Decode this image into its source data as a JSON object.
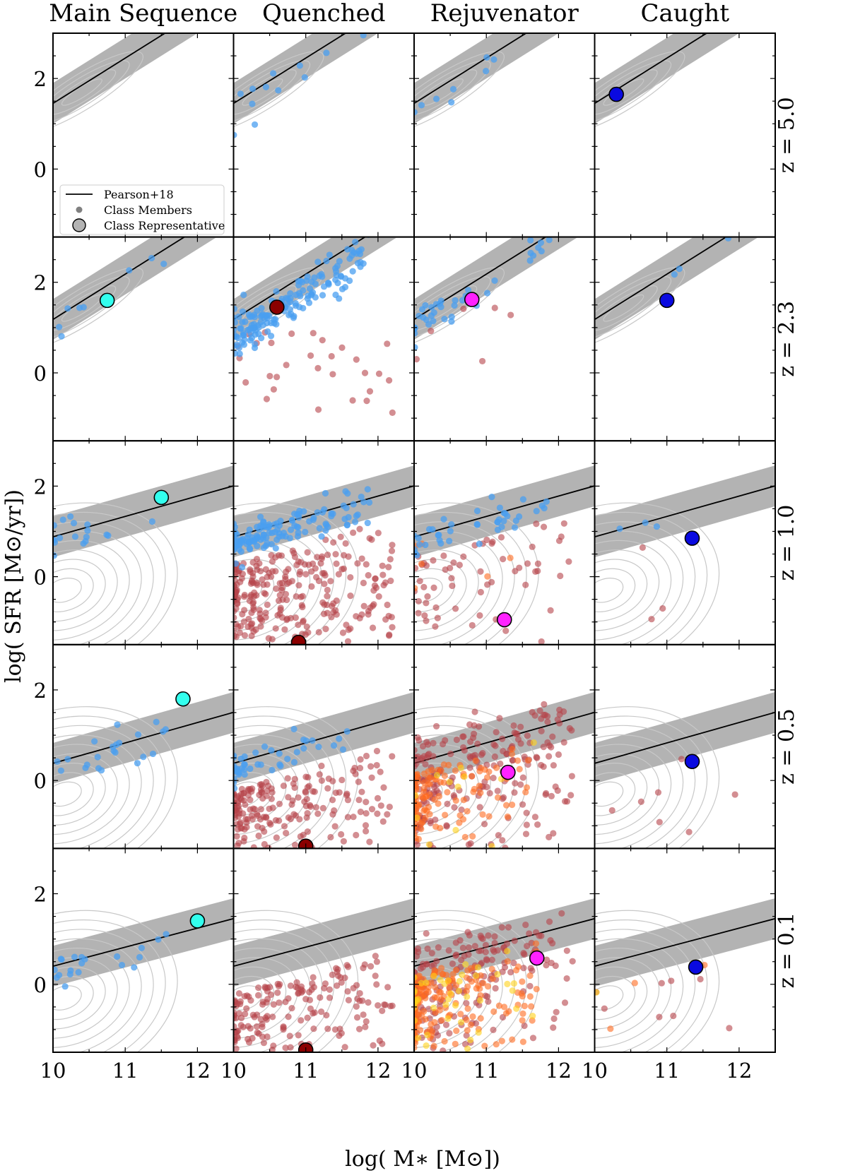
{
  "chart_data": {
    "type": "scatter",
    "columns": [
      "Main Sequence",
      "Quenched",
      "Rejuvenator",
      "Caught"
    ],
    "rows": [
      {
        "label": "z = 5.0",
        "z": 5.0,
        "ms_offset": 1.45
      },
      {
        "label": "z = 2.3",
        "z": 2.3,
        "ms_offset": 1.18
      },
      {
        "label": "z = 1.0",
        "z": 1.0,
        "ms_offset": 0.88
      },
      {
        "label": "z = 0.5",
        "z": 0.5,
        "ms_offset": 0.38
      },
      {
        "label": "z = 0.1",
        "z": 0.1,
        "ms_offset": 0.4
      }
    ],
    "ms_slopes": [
      1.0,
      1.0,
      0.45,
      0.45,
      0.42
    ],
    "ms_band_halfwidth": 0.45,
    "xlabel": "log( M∗ [M⊙])",
    "ylabel": "log( SFR [M⊙/yr])",
    "xlim": [
      10,
      12.5
    ],
    "ylim": [
      -1.5,
      3.0
    ],
    "xticks": [
      10,
      11,
      12
    ],
    "yticks": [
      0,
      2
    ],
    "legend": {
      "position": "lower-left",
      "panel": "Main Sequence, z = 5.0",
      "items": [
        "Pearson+18",
        "Class Members",
        "Class Representative"
      ]
    },
    "representatives": [
      {
        "column": "Caught",
        "row": "z = 5.0",
        "x": 10.3,
        "y": 1.65,
        "color": "#0a0ae0"
      },
      {
        "column": "Main Sequence",
        "row": "z = 2.3",
        "x": 10.75,
        "y": 1.6,
        "color": "#33ffee"
      },
      {
        "column": "Quenched",
        "row": "z = 2.3",
        "x": 10.6,
        "y": 1.45,
        "color": "#8b0000"
      },
      {
        "column": "Rejuvenator",
        "row": "z = 2.3",
        "x": 10.8,
        "y": 1.62,
        "color": "#ff22ff"
      },
      {
        "column": "Caught",
        "row": "z = 2.3",
        "x": 11.0,
        "y": 1.6,
        "color": "#0a0ae0"
      },
      {
        "column": "Main Sequence",
        "row": "z = 1.0",
        "x": 11.5,
        "y": 1.75,
        "color": "#33ffee"
      },
      {
        "column": "Quenched",
        "row": "z = 1.0",
        "x": 10.9,
        "y": -1.45,
        "color": "#8b0000"
      },
      {
        "column": "Rejuvenator",
        "row": "z = 1.0",
        "x": 11.25,
        "y": -0.95,
        "color": "#ff22ff"
      },
      {
        "column": "Caught",
        "row": "z = 1.0",
        "x": 11.35,
        "y": 0.85,
        "color": "#0a0ae0"
      },
      {
        "column": "Main Sequence",
        "row": "z = 0.5",
        "x": 11.8,
        "y": 1.8,
        "color": "#33ffee"
      },
      {
        "column": "Quenched",
        "row": "z = 0.5",
        "x": 11.0,
        "y": -1.45,
        "color": "#8b0000"
      },
      {
        "column": "Rejuvenator",
        "row": "z = 0.5",
        "x": 11.3,
        "y": 0.18,
        "color": "#ff22ff"
      },
      {
        "column": "Caught",
        "row": "z = 0.5",
        "x": 11.35,
        "y": 0.42,
        "color": "#0a0ae0"
      },
      {
        "column": "Main Sequence",
        "row": "z = 0.1",
        "x": 12.0,
        "y": 1.4,
        "color": "#33ffee"
      },
      {
        "column": "Quenched",
        "row": "z = 0.1",
        "x": 11.0,
        "y": -1.45,
        "color": "#8b0000"
      },
      {
        "column": "Rejuvenator",
        "row": "z = 0.1",
        "x": 11.7,
        "y": 0.58,
        "color": "#ff22ff"
      },
      {
        "column": "Caught",
        "row": "z = 0.1",
        "x": 11.4,
        "y": 0.38,
        "color": "#0a0ae0"
      }
    ],
    "member_series": [
      {
        "column": "Main Sequence",
        "row": "z = 5.0",
        "blue": 0,
        "red": 0,
        "orange": 0,
        "yellow": 0
      },
      {
        "column": "Quenched",
        "row": "z = 5.0",
        "blue": 12,
        "red": 0,
        "orange": 0,
        "yellow": 0
      },
      {
        "column": "Rejuvenator",
        "row": "z = 5.0",
        "blue": 8,
        "red": 0,
        "orange": 0,
        "yellow": 0
      },
      {
        "column": "Caught",
        "row": "z = 5.0",
        "blue": 0,
        "red": 0,
        "orange": 0,
        "yellow": 0
      },
      {
        "column": "Main Sequence",
        "row": "z = 2.3",
        "blue": 8,
        "red": 0,
        "orange": 0,
        "yellow": 0
      },
      {
        "column": "Quenched",
        "row": "z = 2.3",
        "blue": 160,
        "red": 30,
        "orange": 0,
        "yellow": 0
      },
      {
        "column": "Rejuvenator",
        "row": "z = 2.3",
        "blue": 40,
        "red": 6,
        "orange": 0,
        "yellow": 0
      },
      {
        "column": "Caught",
        "row": "z = 2.3",
        "blue": 3,
        "red": 0,
        "orange": 0,
        "yellow": 0
      },
      {
        "column": "Main Sequence",
        "row": "z = 1.0",
        "blue": 18,
        "red": 0,
        "orange": 0,
        "yellow": 0
      },
      {
        "column": "Quenched",
        "row": "z = 1.0",
        "blue": 130,
        "red": 260,
        "orange": 0,
        "yellow": 0
      },
      {
        "column": "Rejuvenator",
        "row": "z = 1.0",
        "blue": 40,
        "red": 60,
        "orange": 6,
        "yellow": 0
      },
      {
        "column": "Caught",
        "row": "z = 1.0",
        "blue": 3,
        "red": 3,
        "orange": 0,
        "yellow": 0
      },
      {
        "column": "Main Sequence",
        "row": "z = 0.5",
        "blue": 22,
        "red": 0,
        "orange": 0,
        "yellow": 0
      },
      {
        "column": "Quenched",
        "row": "z = 0.5",
        "blue": 45,
        "red": 190,
        "orange": 0,
        "yellow": 0
      },
      {
        "column": "Rejuvenator",
        "row": "z = 0.5",
        "blue": 0,
        "red": 220,
        "orange": 110,
        "yellow": 12
      },
      {
        "column": "Caught",
        "row": "z = 0.5",
        "blue": 0,
        "red": 7,
        "orange": 0,
        "yellow": 0
      },
      {
        "column": "Main Sequence",
        "row": "z = 0.1",
        "blue": 20,
        "red": 0,
        "orange": 0,
        "yellow": 0
      },
      {
        "column": "Quenched",
        "row": "z = 0.1",
        "blue": 0,
        "red": 170,
        "orange": 0,
        "yellow": 0
      },
      {
        "column": "Rejuvenator",
        "row": "z = 0.1",
        "blue": 0,
        "red": 180,
        "orange": 170,
        "yellow": 45
      },
      {
        "column": "Caught",
        "row": "z = 0.1",
        "blue": 0,
        "red": 8,
        "orange": 3,
        "yellow": 1
      }
    ],
    "colors": {
      "band": "#b3b3b3",
      "line": "#000000",
      "contour": "#c8c8c8",
      "member_blue": "#4a9ff0",
      "member_red": "#b5424a",
      "member_orange": "#ff6a20",
      "member_yellow": "#ffd21a",
      "legend_marker": "#808080"
    }
  }
}
